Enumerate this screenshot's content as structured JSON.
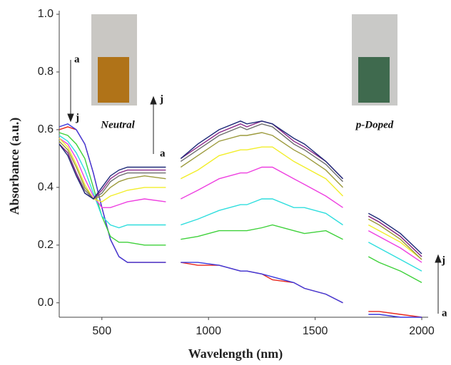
{
  "chart_data": {
    "type": "line",
    "x_label": "Wavelength (nm)",
    "y_label": "Absorbance (a.u.)",
    "x": [
      300,
      340,
      380,
      420,
      460,
      500,
      540,
      580,
      620,
      700,
      800,
      830,
      870,
      950,
      1050,
      1150,
      1180,
      1250,
      1300,
      1400,
      1450,
      1550,
      1630,
      1690,
      1750,
      1800,
      1900,
      2000
    ],
    "series": [
      {
        "color": "#e8261c",
        "values": [
          0.6,
          0.61,
          0.6,
          0.55,
          0.45,
          0.33,
          0.22,
          0.16,
          0.14,
          0.14,
          0.14,
          null,
          0.14,
          0.13,
          0.13,
          0.11,
          0.11,
          0.1,
          0.08,
          0.07,
          0.05,
          0.03,
          0.0,
          null,
          -0.03,
          -0.03,
          -0.04,
          -0.05
        ]
      },
      {
        "color": "#3a3adf",
        "values": [
          0.61,
          0.62,
          0.6,
          0.55,
          0.45,
          0.33,
          0.22,
          0.16,
          0.14,
          0.14,
          0.14,
          null,
          0.14,
          0.14,
          0.13,
          0.11,
          0.11,
          0.1,
          0.09,
          0.07,
          0.05,
          0.03,
          0.0,
          null,
          -0.04,
          -0.04,
          -0.05,
          -0.05
        ]
      },
      {
        "color": "#3ed13a",
        "values": [
          0.59,
          0.58,
          0.55,
          0.5,
          0.4,
          0.3,
          0.23,
          0.21,
          0.21,
          0.2,
          0.2,
          null,
          0.22,
          0.23,
          0.25,
          0.25,
          0.25,
          0.26,
          0.27,
          0.25,
          0.24,
          0.25,
          0.22,
          null,
          0.16,
          0.14,
          0.11,
          0.07
        ]
      },
      {
        "color": "#2fdede",
        "values": [
          0.58,
          0.56,
          0.52,
          0.46,
          0.38,
          0.3,
          0.27,
          0.26,
          0.27,
          0.27,
          0.27,
          null,
          0.27,
          0.29,
          0.32,
          0.34,
          0.34,
          0.36,
          0.36,
          0.33,
          0.33,
          0.31,
          0.27,
          null,
          0.21,
          0.19,
          0.15,
          0.11
        ]
      },
      {
        "color": "#ee3fe0",
        "values": [
          0.57,
          0.55,
          0.5,
          0.43,
          0.37,
          0.33,
          0.33,
          0.34,
          0.35,
          0.36,
          0.35,
          null,
          0.36,
          0.39,
          0.43,
          0.45,
          0.45,
          0.47,
          0.47,
          0.43,
          0.41,
          0.37,
          0.33,
          null,
          0.25,
          0.23,
          0.19,
          0.14
        ]
      },
      {
        "color": "#f2ee2a",
        "values": [
          0.57,
          0.54,
          0.48,
          0.41,
          0.36,
          0.35,
          0.37,
          0.38,
          0.39,
          0.4,
          0.4,
          null,
          0.43,
          0.46,
          0.51,
          0.53,
          0.53,
          0.54,
          0.54,
          0.49,
          0.47,
          0.43,
          0.37,
          null,
          0.27,
          0.25,
          0.21,
          0.15
        ]
      },
      {
        "color": "#9c9a3c",
        "values": [
          0.56,
          0.53,
          0.47,
          0.4,
          0.36,
          0.37,
          0.4,
          0.42,
          0.43,
          0.44,
          0.43,
          null,
          0.47,
          0.51,
          0.56,
          0.58,
          0.58,
          0.59,
          0.58,
          0.53,
          0.51,
          0.46,
          0.4,
          null,
          0.29,
          0.27,
          0.22,
          0.15
        ]
      },
      {
        "color": "#6e6e6e",
        "values": [
          0.55,
          0.52,
          0.45,
          0.39,
          0.36,
          0.38,
          0.42,
          0.44,
          0.45,
          0.45,
          0.45,
          null,
          0.49,
          0.53,
          0.58,
          0.61,
          0.6,
          0.62,
          0.61,
          0.55,
          0.53,
          0.48,
          0.42,
          null,
          0.3,
          0.28,
          0.23,
          0.16
        ]
      },
      {
        "color": "#8a2a8a",
        "values": [
          0.55,
          0.52,
          0.45,
          0.38,
          0.36,
          0.39,
          0.43,
          0.45,
          0.46,
          0.46,
          0.46,
          null,
          0.5,
          0.54,
          0.59,
          0.62,
          0.61,
          0.63,
          0.62,
          0.56,
          0.54,
          0.49,
          0.43,
          null,
          0.3,
          0.28,
          0.23,
          0.16
        ]
      },
      {
        "color": "#1e2a78",
        "values": [
          0.55,
          0.51,
          0.44,
          0.38,
          0.36,
          0.4,
          0.44,
          0.46,
          0.47,
          0.47,
          0.47,
          null,
          0.5,
          0.55,
          0.6,
          0.63,
          0.62,
          0.63,
          0.62,
          0.57,
          0.55,
          0.49,
          0.43,
          null,
          0.31,
          0.29,
          0.24,
          0.17
        ]
      }
    ],
    "xlim": [
      300,
      2030
    ],
    "xticks": [
      500,
      1000,
      1500,
      2000
    ],
    "ylim": [
      -0.05,
      1.0
    ],
    "yticks": [
      {
        "value": 0.0,
        "label": "0.0"
      },
      0.2,
      0.4,
      0.6,
      0.8,
      {
        "value": 1.0,
        "label": "1.0"
      }
    ],
    "annotations": [
      "a",
      "j",
      "j",
      "a",
      "j",
      "a",
      "Neutral",
      "p-Doped"
    ]
  }
}
